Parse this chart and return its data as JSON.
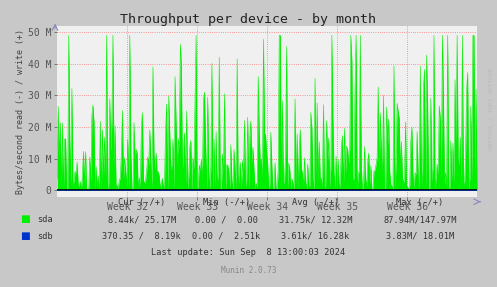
{
  "title": "Throughput per device - by month",
  "ylabel": "Bytes/second read (-) / write (+)",
  "outer_bg": "#c8c8c8",
  "plot_bg": "#f0f0f0",
  "grid_color": "#ff6666",
  "ylim": [
    -2000000,
    52000000
  ],
  "yticks": [
    0,
    10000000,
    20000000,
    30000000,
    40000000,
    50000000
  ],
  "ytick_labels": [
    "0",
    "10 M",
    "20 M",
    "30 M",
    "40 M",
    "50 M"
  ],
  "xtick_labels": [
    "Week 32",
    "Week 33",
    "Week 34",
    "Week 35",
    "Week 36"
  ],
  "sda_color": "#00ee00",
  "sdb_color": "#0033cc",
  "watermark_text": "RRDTOOL / TOBI OETIKER",
  "footer_cur": "Cur (-/+)",
  "footer_min": "Min (-/+)",
  "footer_avg": "Avg (-/+)",
  "footer_max": "Max (-/+)",
  "sda_label": "sda",
  "sdb_label": "sdb",
  "sda_cur": "8.44k/ 25.17M",
  "sda_min": "0.00 /  0.00",
  "sda_avg": "31.75k/ 12.32M",
  "sda_max": "87.94M/147.97M",
  "sdb_cur": "370.35 /  8.19k",
  "sdb_min": "0.00 /  2.51k",
  "sdb_avg": "3.61k/ 16.28k",
  "sdb_max": "3.83M/ 18.01M",
  "last_update": "Last update: Sun Sep  8 13:00:03 2024",
  "munin_version": "Munin 2.0.73",
  "num_points": 400,
  "seed": 42
}
